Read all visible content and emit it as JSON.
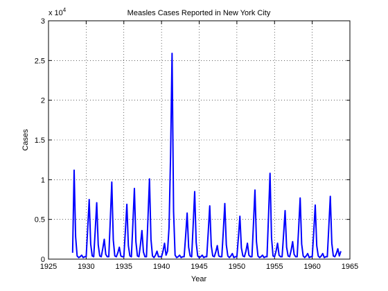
{
  "chart_data": {
    "type": "line",
    "title": "Measles Cases Reported in New York City",
    "xlabel": "Year",
    "ylabel": "Cases",
    "y_multiplier_label": "x 10",
    "y_multiplier_exponent": "4",
    "x": [
      1928.2,
      1928.4,
      1928.6,
      1928.8,
      1929,
      1929.2,
      1929.4,
      1929.6,
      1929.8,
      1930,
      1930.2,
      1930.4,
      1930.6,
      1930.8,
      1931,
      1931.2,
      1931.4,
      1931.6,
      1931.8,
      1932,
      1932.2,
      1932.4,
      1932.6,
      1932.8,
      1933,
      1933.2,
      1933.4,
      1933.6,
      1933.8,
      1934,
      1934.2,
      1934.4,
      1934.6,
      1934.8,
      1935,
      1935.2,
      1935.4,
      1935.6,
      1935.8,
      1936,
      1936.2,
      1936.4,
      1936.6,
      1936.8,
      1937,
      1937.2,
      1937.4,
      1937.6,
      1937.8,
      1938,
      1938.2,
      1938.4,
      1938.6,
      1938.8,
      1939,
      1939.2,
      1939.4,
      1939.6,
      1939.8,
      1940,
      1940.2,
      1940.4,
      1940.6,
      1940.8,
      1941,
      1941.2,
      1941.4,
      1941.6,
      1941.8,
      1942,
      1942.2,
      1942.4,
      1942.6,
      1942.8,
      1943,
      1943.2,
      1943.4,
      1943.6,
      1943.8,
      1944,
      1944.2,
      1944.4,
      1944.6,
      1944.8,
      1945,
      1945.2,
      1945.4,
      1945.6,
      1945.8,
      1946,
      1946.2,
      1946.4,
      1946.6,
      1946.8,
      1947,
      1947.2,
      1947.4,
      1947.6,
      1947.8,
      1948,
      1948.2,
      1948.4,
      1948.6,
      1948.8,
      1949,
      1949.2,
      1949.4,
      1949.6,
      1949.8,
      1950,
      1950.2,
      1950.4,
      1950.6,
      1950.8,
      1951,
      1951.2,
      1951.4,
      1951.6,
      1951.8,
      1952,
      1952.2,
      1952.4,
      1952.6,
      1952.8,
      1953,
      1953.2,
      1953.4,
      1953.6,
      1953.8,
      1954,
      1954.2,
      1954.4,
      1954.6,
      1954.8,
      1955,
      1955.2,
      1955.4,
      1955.6,
      1955.8,
      1956,
      1956.2,
      1956.4,
      1956.6,
      1956.8,
      1957,
      1957.2,
      1957.4,
      1957.6,
      1957.8,
      1958,
      1958.2,
      1958.4,
      1958.6,
      1958.8,
      1959,
      1959.2,
      1959.4,
      1959.6,
      1959.8,
      1960,
      1960.2,
      1960.4,
      1960.6,
      1960.8,
      1961,
      1961.2,
      1961.4,
      1961.6,
      1961.8,
      1962,
      1962.2,
      1962.4,
      1962.6,
      1962.8,
      1963,
      1963.2,
      1963.4,
      1963.6,
      1963.8
    ],
    "series": [
      {
        "color": "#0000ff",
        "values": [
          0.08,
          1.12,
          0.28,
          0.04,
          0.02,
          0.03,
          0.05,
          0.02,
          0.03,
          0.03,
          0.38,
          0.75,
          0.19,
          0.04,
          0.03,
          0.36,
          0.71,
          0.18,
          0.04,
          0.03,
          0.13,
          0.25,
          0.06,
          0.03,
          0.03,
          0.49,
          0.97,
          0.24,
          0.04,
          0.03,
          0.08,
          0.15,
          0.04,
          0.03,
          0.03,
          0.35,
          0.69,
          0.17,
          0.04,
          0.03,
          0.45,
          0.89,
          0.22,
          0.04,
          0.03,
          0.18,
          0.36,
          0.09,
          0.03,
          0.03,
          0.51,
          1.01,
          0.25,
          0.04,
          0.02,
          0.05,
          0.1,
          0.03,
          0.03,
          0.03,
          0.1,
          0.2,
          0.05,
          0.1,
          0.4,
          1.3,
          2.59,
          0.6,
          0.05,
          0.02,
          0.03,
          0.05,
          0.02,
          0.03,
          0.03,
          0.29,
          0.58,
          0.15,
          0.04,
          0.03,
          0.43,
          0.85,
          0.21,
          0.04,
          0.02,
          0.03,
          0.05,
          0.02,
          0.03,
          0.03,
          0.34,
          0.67,
          0.17,
          0.04,
          0.03,
          0.09,
          0.17,
          0.04,
          0.03,
          0.03,
          0.35,
          0.7,
          0.18,
          0.04,
          0.02,
          0.04,
          0.07,
          0.02,
          0.03,
          0.03,
          0.27,
          0.54,
          0.14,
          0.04,
          0.03,
          0.1,
          0.2,
          0.05,
          0.03,
          0.03,
          0.44,
          0.87,
          0.22,
          0.04,
          0.02,
          0.03,
          0.05,
          0.02,
          0.03,
          0.03,
          0.54,
          1.08,
          0.27,
          0.04,
          0.03,
          0.1,
          0.2,
          0.05,
          0.03,
          0.03,
          0.31,
          0.61,
          0.15,
          0.04,
          0.03,
          0.11,
          0.22,
          0.06,
          0.03,
          0.03,
          0.39,
          0.77,
          0.19,
          0.04,
          0.02,
          0.04,
          0.07,
          0.02,
          0.03,
          0.03,
          0.34,
          0.68,
          0.17,
          0.04,
          0.02,
          0.04,
          0.07,
          0.02,
          0.03,
          0.03,
          0.4,
          0.79,
          0.2,
          0.04,
          0.03,
          0.07,
          0.13,
          0.04,
          0.1
        ]
      }
    ],
    "xlim": [
      1925,
      1965
    ],
    "xticks": [
      1925,
      1930,
      1935,
      1940,
      1945,
      1950,
      1955,
      1960,
      1965
    ],
    "ylim": [
      0,
      3
    ],
    "yticks": [
      0,
      0.5,
      1,
      1.5,
      2,
      2.5,
      3
    ],
    "grid": true
  }
}
